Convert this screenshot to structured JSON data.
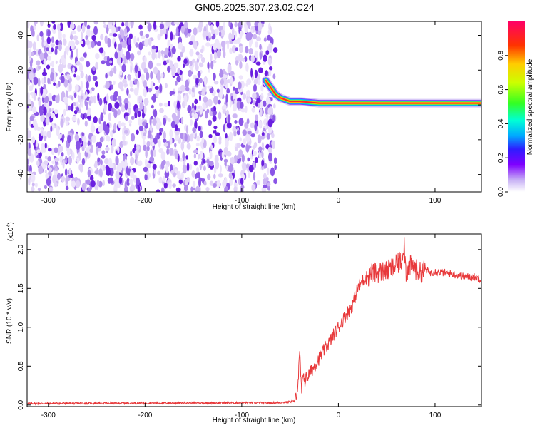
{
  "figure": {
    "title": "GN05.2025.307.23.02.C24"
  },
  "chart_data": [
    {
      "type": "heatmap",
      "xlabel": "Height of straight line (km)",
      "ylabel": "Frequency (Hz)",
      "xlim": [
        -322,
        148
      ],
      "ylim": [
        -50,
        48
      ],
      "x_ticks": [
        -300,
        -200,
        -100,
        0,
        100
      ],
      "x_tick_labels": [
        "-300",
        "-200",
        "-100",
        "0",
        "100"
      ],
      "y_ticks": [
        -40,
        -20,
        0,
        20,
        40
      ],
      "y_tick_labels": [
        "-40",
        "-20",
        "0",
        "20",
        "40"
      ],
      "noise_region_x": [
        -322,
        -65
      ],
      "signal_ridge": {
        "x": [
          -75,
          -70,
          -65,
          -60,
          -55,
          -50,
          -40,
          -30,
          -20,
          -10,
          0,
          10,
          20,
          40,
          60,
          80,
          100,
          120,
          148
        ],
        "frequency_hz": [
          14,
          10,
          6,
          4,
          3,
          2,
          2,
          1.5,
          1,
          1,
          1,
          1,
          1,
          1,
          1,
          1,
          1,
          1,
          1
        ]
      },
      "colorbar": {
        "label": "Normalized spectral amplitude",
        "range": [
          0,
          1
        ],
        "ticks": [
          0.0,
          0.2,
          0.4,
          0.6,
          0.8
        ],
        "tick_labels": [
          "0.0",
          "0.2",
          "0.4",
          "0.6",
          "0.8"
        ]
      },
      "grid": false
    },
    {
      "type": "line",
      "xlabel": "Height of straight line (km)",
      "ylabel": "SNR (10 * v/v)",
      "scale_label": "(x10",
      "scale_exponent": "4",
      "xlim": [
        -322,
        148
      ],
      "ylim": [
        -0.02,
        2.2
      ],
      "x_ticks": [
        -300,
        -200,
        -100,
        0,
        100
      ],
      "x_tick_labels": [
        "-300",
        "-200",
        "-100",
        "0",
        "100"
      ],
      "y_ticks": [
        0.0,
        0.5,
        1.0,
        1.5,
        2.0
      ],
      "y_tick_labels": [
        "0.0",
        "0.5",
        "1.0",
        "1.5",
        "2.0"
      ],
      "series": [
        {
          "color": "#e8393b",
          "x": [
            -322,
            -60,
            -45,
            -42,
            -40,
            -38,
            -36,
            -35,
            -33,
            -30,
            -25,
            -20,
            -15,
            -10,
            -5,
            0,
            5,
            10,
            15,
            20,
            25,
            30,
            35,
            40,
            45,
            50,
            55,
            60,
            65,
            68,
            70,
            75,
            80,
            85,
            90,
            95,
            100,
            110,
            120,
            130,
            140,
            148
          ],
          "values": [
            0.02,
            0.03,
            0.05,
            0.25,
            0.65,
            0.15,
            0.45,
            0.3,
            0.35,
            0.4,
            0.5,
            0.6,
            0.7,
            0.8,
            0.9,
            1.0,
            1.1,
            1.2,
            1.3,
            1.5,
            1.6,
            1.65,
            1.7,
            1.7,
            1.72,
            1.72,
            1.75,
            1.8,
            1.85,
            2.1,
            1.7,
            1.8,
            1.75,
            1.7,
            1.75,
            1.7,
            1.72,
            1.7,
            1.68,
            1.65,
            1.65,
            1.62
          ]
        }
      ],
      "grid": false
    }
  ]
}
